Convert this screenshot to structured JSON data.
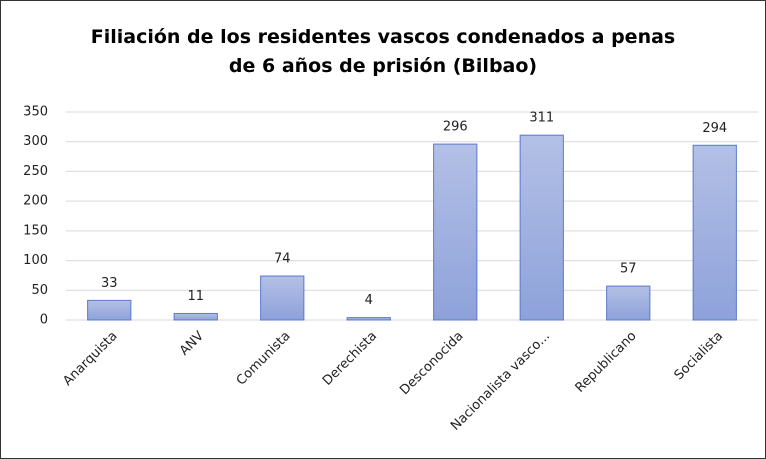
{
  "chart_data": {
    "type": "bar",
    "title": "Filiación de los residentes vascos condenados a penas de 6 años de prisión (Bilbao)",
    "categories": [
      "Anarquista",
      "ANV",
      "Comunista",
      "Derechista",
      "Desconocida",
      "Nacionalista vasco...",
      "Republicano",
      "Socialista"
    ],
    "values": [
      33,
      11,
      74,
      4,
      296,
      311,
      57,
      294
    ],
    "color": "#a3b3df",
    "ylim": [
      0,
      350
    ],
    "yticks": [
      0,
      50,
      100,
      150,
      200,
      250,
      300,
      350
    ],
    "grid": true
  }
}
